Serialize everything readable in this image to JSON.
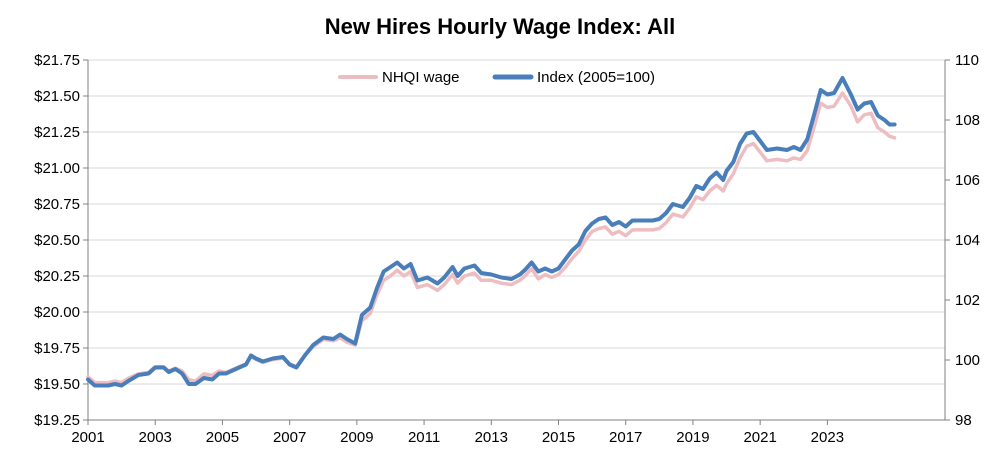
{
  "chart_data": {
    "type": "line",
    "title": "New Hires Hourly Wage Index: All",
    "xlabel": "",
    "ylabel": "",
    "xlim": [
      2001,
      2026.5
    ],
    "ylim": [
      19.25,
      21.75
    ],
    "y2lim": [
      98,
      110
    ],
    "x_ticks": [
      "2001",
      "2003",
      "2005",
      "2007",
      "2009",
      "2011",
      "2013",
      "2015",
      "2017",
      "2019",
      "2021",
      "2023"
    ],
    "y_ticks": [
      "$19.25",
      "$19.50",
      "$19.75",
      "$20.00",
      "$20.25",
      "$20.50",
      "$20.75",
      "$21.00",
      "$21.25",
      "$21.50",
      "$21.75"
    ],
    "y2_ticks": [
      "98",
      "100",
      "102",
      "104",
      "106",
      "108",
      "110"
    ],
    "grid": "horizontal",
    "legend_position": "top-center",
    "series": [
      {
        "name": "NHQI wage",
        "axis": "left",
        "color": "#EEBDC1",
        "points": [
          [
            2001.0,
            19.55
          ],
          [
            2001.2,
            19.51
          ],
          [
            2001.6,
            19.51
          ],
          [
            2001.8,
            19.52
          ],
          [
            2002.0,
            19.51
          ],
          [
            2002.2,
            19.54
          ],
          [
            2002.5,
            19.57
          ],
          [
            2002.8,
            19.58
          ],
          [
            2003.0,
            19.62
          ],
          [
            2003.25,
            19.62
          ],
          [
            2003.4,
            19.59
          ],
          [
            2003.6,
            19.61
          ],
          [
            2003.8,
            19.59
          ],
          [
            2004.0,
            19.53
          ],
          [
            2004.2,
            19.52
          ],
          [
            2004.45,
            19.57
          ],
          [
            2004.7,
            19.56
          ],
          [
            2004.9,
            19.59
          ],
          [
            2005.1,
            19.58
          ],
          [
            2005.3,
            19.6
          ],
          [
            2005.5,
            19.62
          ],
          [
            2005.7,
            19.64
          ],
          [
            2005.85,
            19.69
          ],
          [
            2006.0,
            19.67
          ],
          [
            2006.2,
            19.65
          ],
          [
            2006.5,
            19.67
          ],
          [
            2006.8,
            19.68
          ],
          [
            2007.0,
            19.64
          ],
          [
            2007.2,
            19.62
          ],
          [
            2007.45,
            19.7
          ],
          [
            2007.7,
            19.76
          ],
          [
            2008.0,
            19.81
          ],
          [
            2008.3,
            19.8
          ],
          [
            2008.5,
            19.82
          ],
          [
            2008.7,
            19.79
          ],
          [
            2008.95,
            19.77
          ],
          [
            2009.15,
            19.94
          ],
          [
            2009.4,
            19.99
          ],
          [
            2009.6,
            20.12
          ],
          [
            2009.8,
            20.22
          ],
          [
            2010.0,
            20.25
          ],
          [
            2010.2,
            20.29
          ],
          [
            2010.4,
            20.25
          ],
          [
            2010.6,
            20.28
          ],
          [
            2010.8,
            20.17
          ],
          [
            2011.1,
            20.19
          ],
          [
            2011.4,
            20.15
          ],
          [
            2011.6,
            20.19
          ],
          [
            2011.85,
            20.26
          ],
          [
            2012.0,
            20.2
          ],
          [
            2012.2,
            20.25
          ],
          [
            2012.5,
            20.27
          ],
          [
            2012.7,
            20.22
          ],
          [
            2013.0,
            20.22
          ],
          [
            2013.3,
            20.2
          ],
          [
            2013.6,
            20.19
          ],
          [
            2013.85,
            20.22
          ],
          [
            2014.0,
            20.25
          ],
          [
            2014.2,
            20.3
          ],
          [
            2014.4,
            20.23
          ],
          [
            2014.6,
            20.26
          ],
          [
            2014.8,
            20.24
          ],
          [
            2015.0,
            20.26
          ],
          [
            2015.2,
            20.31
          ],
          [
            2015.4,
            20.37
          ],
          [
            2015.6,
            20.42
          ],
          [
            2015.8,
            20.5
          ],
          [
            2016.0,
            20.56
          ],
          [
            2016.2,
            20.58
          ],
          [
            2016.4,
            20.59
          ],
          [
            2016.6,
            20.54
          ],
          [
            2016.8,
            20.56
          ],
          [
            2017.0,
            20.53
          ],
          [
            2017.2,
            20.57
          ],
          [
            2017.5,
            20.57
          ],
          [
            2017.8,
            20.57
          ],
          [
            2018.0,
            20.58
          ],
          [
            2018.2,
            20.62
          ],
          [
            2018.4,
            20.68
          ],
          [
            2018.7,
            20.66
          ],
          [
            2018.9,
            20.72
          ],
          [
            2019.1,
            20.8
          ],
          [
            2019.3,
            20.78
          ],
          [
            2019.5,
            20.84
          ],
          [
            2019.7,
            20.88
          ],
          [
            2019.9,
            20.84
          ],
          [
            2020.0,
            20.89
          ],
          [
            2020.2,
            20.96
          ],
          [
            2020.4,
            21.07
          ],
          [
            2020.6,
            21.15
          ],
          [
            2020.8,
            21.17
          ],
          [
            2021.0,
            21.11
          ],
          [
            2021.2,
            21.05
          ],
          [
            2021.5,
            21.06
          ],
          [
            2021.8,
            21.05
          ],
          [
            2022.0,
            21.07
          ],
          [
            2022.2,
            21.06
          ],
          [
            2022.4,
            21.12
          ],
          [
            2022.6,
            21.28
          ],
          [
            2022.8,
            21.45
          ],
          [
            2023.0,
            21.42
          ],
          [
            2023.2,
            21.43
          ],
          [
            2023.45,
            21.52
          ],
          [
            2023.7,
            21.43
          ],
          [
            2023.9,
            21.32
          ],
          [
            2024.1,
            21.37
          ],
          [
            2024.3,
            21.38
          ],
          [
            2024.5,
            21.28
          ],
          [
            2024.7,
            21.25
          ],
          [
            2024.85,
            21.22
          ],
          [
            2025.0,
            21.21
          ]
        ]
      },
      {
        "name": "Index (2005=100)",
        "axis": "right",
        "color": "#4A7EBB",
        "points": [
          [
            2001.0,
            99.35
          ],
          [
            2001.2,
            99.15
          ],
          [
            2001.6,
            99.15
          ],
          [
            2001.8,
            99.2
          ],
          [
            2002.0,
            99.15
          ],
          [
            2002.2,
            99.3
          ],
          [
            2002.5,
            99.5
          ],
          [
            2002.8,
            99.55
          ],
          [
            2003.0,
            99.75
          ],
          [
            2003.25,
            99.75
          ],
          [
            2003.4,
            99.6
          ],
          [
            2003.6,
            99.7
          ],
          [
            2003.8,
            99.55
          ],
          [
            2004.0,
            99.2
          ],
          [
            2004.2,
            99.2
          ],
          [
            2004.45,
            99.4
          ],
          [
            2004.7,
            99.35
          ],
          [
            2004.9,
            99.55
          ],
          [
            2005.1,
            99.55
          ],
          [
            2005.3,
            99.65
          ],
          [
            2005.5,
            99.75
          ],
          [
            2005.7,
            99.85
          ],
          [
            2005.85,
            100.15
          ],
          [
            2006.0,
            100.05
          ],
          [
            2006.2,
            99.95
          ],
          [
            2006.5,
            100.05
          ],
          [
            2006.8,
            100.1
          ],
          [
            2007.0,
            99.85
          ],
          [
            2007.2,
            99.75
          ],
          [
            2007.45,
            100.15
          ],
          [
            2007.7,
            100.5
          ],
          [
            2008.0,
            100.75
          ],
          [
            2008.3,
            100.7
          ],
          [
            2008.5,
            100.85
          ],
          [
            2008.7,
            100.7
          ],
          [
            2008.95,
            100.55
          ],
          [
            2009.15,
            101.5
          ],
          [
            2009.4,
            101.75
          ],
          [
            2009.6,
            102.4
          ],
          [
            2009.8,
            102.95
          ],
          [
            2010.0,
            103.1
          ],
          [
            2010.2,
            103.25
          ],
          [
            2010.4,
            103.05
          ],
          [
            2010.6,
            103.2
          ],
          [
            2010.8,
            102.65
          ],
          [
            2011.1,
            102.75
          ],
          [
            2011.4,
            102.55
          ],
          [
            2011.6,
            102.75
          ],
          [
            2011.85,
            103.1
          ],
          [
            2012.0,
            102.8
          ],
          [
            2012.2,
            103.05
          ],
          [
            2012.5,
            103.15
          ],
          [
            2012.7,
            102.9
          ],
          [
            2013.0,
            102.85
          ],
          [
            2013.3,
            102.75
          ],
          [
            2013.6,
            102.7
          ],
          [
            2013.85,
            102.85
          ],
          [
            2014.0,
            103.0
          ],
          [
            2014.2,
            103.25
          ],
          [
            2014.4,
            102.95
          ],
          [
            2014.6,
            103.05
          ],
          [
            2014.8,
            102.95
          ],
          [
            2015.0,
            103.05
          ],
          [
            2015.2,
            103.35
          ],
          [
            2015.4,
            103.65
          ],
          [
            2015.6,
            103.85
          ],
          [
            2015.8,
            104.3
          ],
          [
            2016.0,
            104.55
          ],
          [
            2016.2,
            104.7
          ],
          [
            2016.4,
            104.75
          ],
          [
            2016.6,
            104.5
          ],
          [
            2016.8,
            104.6
          ],
          [
            2017.0,
            104.45
          ],
          [
            2017.2,
            104.65
          ],
          [
            2017.5,
            104.65
          ],
          [
            2017.8,
            104.65
          ],
          [
            2018.0,
            104.7
          ],
          [
            2018.2,
            104.9
          ],
          [
            2018.4,
            105.2
          ],
          [
            2018.7,
            105.1
          ],
          [
            2018.9,
            105.4
          ],
          [
            2019.1,
            105.8
          ],
          [
            2019.3,
            105.7
          ],
          [
            2019.5,
            106.05
          ],
          [
            2019.7,
            106.25
          ],
          [
            2019.9,
            106.0
          ],
          [
            2020.0,
            106.3
          ],
          [
            2020.2,
            106.6
          ],
          [
            2020.4,
            107.2
          ],
          [
            2020.6,
            107.55
          ],
          [
            2020.8,
            107.6
          ],
          [
            2021.0,
            107.3
          ],
          [
            2021.2,
            107.0
          ],
          [
            2021.5,
            107.05
          ],
          [
            2021.8,
            107.0
          ],
          [
            2022.0,
            107.1
          ],
          [
            2022.2,
            107.0
          ],
          [
            2022.4,
            107.35
          ],
          [
            2022.6,
            108.15
          ],
          [
            2022.8,
            109.0
          ],
          [
            2023.0,
            108.85
          ],
          [
            2023.2,
            108.9
          ],
          [
            2023.45,
            109.4
          ],
          [
            2023.7,
            108.85
          ],
          [
            2023.9,
            108.35
          ],
          [
            2024.1,
            108.55
          ],
          [
            2024.3,
            108.6
          ],
          [
            2024.5,
            108.15
          ],
          [
            2024.7,
            108.0
          ],
          [
            2024.85,
            107.85
          ],
          [
            2025.0,
            107.85
          ]
        ]
      }
    ]
  }
}
